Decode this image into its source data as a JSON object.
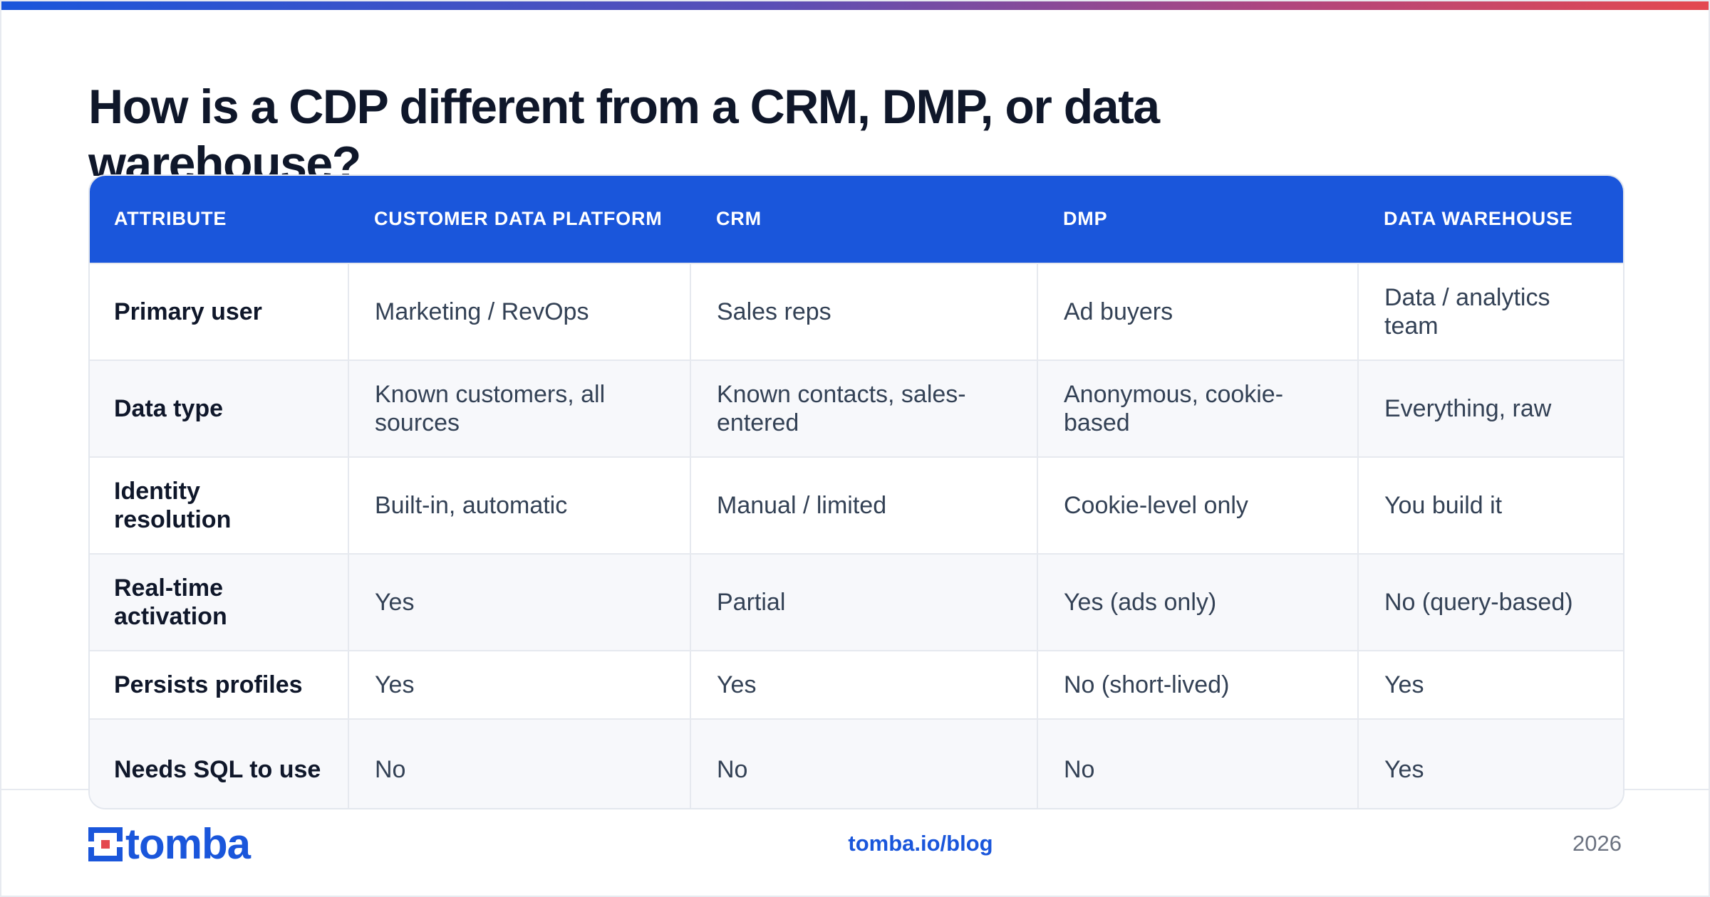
{
  "title": "How is a CDP different from a CRM, DMP, or data warehouse?",
  "table": {
    "headers": [
      "Attribute",
      "Customer Data Platform",
      "CRM",
      "DMP",
      "Data Warehouse"
    ],
    "rows": [
      [
        "Primary user",
        "Marketing / RevOps",
        "Sales reps",
        "Ad buyers",
        "Data / analytics team"
      ],
      [
        "Data type",
        "Known customers, all sources",
        "Known contacts, sales-entered",
        "Anonymous, cookie-based",
        "Everything, raw"
      ],
      [
        "Identity resolution",
        "Built-in, automatic",
        "Manual / limited",
        "Cookie-level only",
        "You build it"
      ],
      [
        "Real-time activation",
        "Yes",
        "Partial",
        "Yes (ads only)",
        "No (query-based)"
      ],
      [
        "Persists profiles",
        "Yes",
        "Yes",
        "No (short-lived)",
        "Yes"
      ],
      [
        "Needs SQL to use",
        "No",
        "No",
        "No",
        "Yes"
      ]
    ]
  },
  "footer": {
    "logo_text": "tomba",
    "link": "tomba.io/blog",
    "year": "2026"
  },
  "colors": {
    "brand_blue": "#1a56db",
    "gradient_start": "#1a56db",
    "gradient_end": "#e4484f"
  }
}
